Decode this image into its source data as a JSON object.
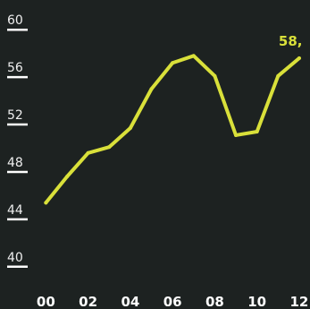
{
  "chart_data": {
    "type": "line",
    "title": "",
    "xlabel": "",
    "ylabel": "",
    "x_tick_labels": [
      "00",
      "02",
      "04",
      "06",
      "08",
      "10",
      "12"
    ],
    "y_tick_labels": [
      "40",
      "44",
      "48",
      "52",
      "56",
      "60"
    ],
    "ylim": [
      39,
      61
    ],
    "xlim": [
      -0.1,
      12.3
    ],
    "grid": false,
    "legend": "none",
    "series": [
      {
        "x": [
          0,
          1,
          2,
          3,
          4,
          5,
          6,
          7,
          8,
          9,
          10,
          11,
          12
        ],
        "values": [
          45.4,
          47.6,
          49.6,
          50.1,
          51.7,
          55.0,
          57.2,
          57.8,
          56.1,
          51.1,
          51.4,
          56.1,
          57.6
        ]
      }
    ],
    "data_label": {
      "index": 12,
      "text": "58,"
    },
    "colors": {
      "background": "#1d2221",
      "line": "#d9e03a",
      "tick_mark": "#ffffff",
      "tick_text": "#eeeeee"
    }
  }
}
